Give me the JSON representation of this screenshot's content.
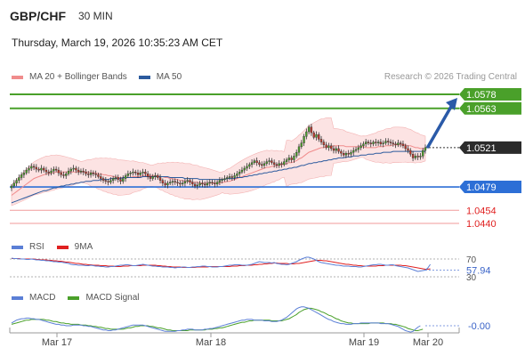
{
  "header": {
    "symbol": "GBP/CHF",
    "interval": "30 MIN",
    "datetime": "Thursday, March 19, 2026 10:35:23 AM CET",
    "research": "Research © 2026 Trading Central"
  },
  "legend_main": [
    {
      "label": "MA 20 + Bollinger Bands",
      "color": "#f08c8c"
    },
    {
      "label": "MA 50",
      "color": "#2c5b9e"
    }
  ],
  "legend_rsi": [
    {
      "label": "RSI",
      "color": "#5b7fd6"
    },
    {
      "label": "9MA",
      "color": "#e02020"
    }
  ],
  "legend_macd": [
    {
      "label": "MACD",
      "color": "#5b7fd6"
    },
    {
      "label": "MACD Signal",
      "color": "#4aa02a"
    }
  ],
  "chart_data": {
    "type": "candlestick",
    "x_ticks": [
      "Mar 17",
      "Mar 18",
      "Mar 19",
      "Mar 20"
    ],
    "ylim": [
      1.043,
      1.059
    ],
    "levels": [
      {
        "value": 1.0578,
        "label": "1.0578",
        "color": "#4aa02a",
        "kind": "resistance"
      },
      {
        "value": 1.0563,
        "label": "1.0563",
        "color": "#4aa02a",
        "kind": "resistance"
      },
      {
        "value": 1.0521,
        "label": "1.0521",
        "color": "#333333",
        "kind": "last"
      },
      {
        "value": 1.0479,
        "label": "1.0479",
        "color": "#2d6fd6",
        "kind": "pivot"
      },
      {
        "value": 1.0454,
        "label": "1.0454",
        "color": "#e02020",
        "kind": "support"
      },
      {
        "value": 1.044,
        "label": "1.0440",
        "color": "#e02020",
        "kind": "support"
      }
    ],
    "close": [
      1.048,
      1.0483,
      1.0486,
      1.0489,
      1.0492,
      1.0494,
      1.0497,
      1.0499,
      1.0501,
      1.05,
      1.0498,
      1.0497,
      1.0499,
      1.0497,
      1.0495,
      1.0494,
      1.0496,
      1.0498,
      1.0497,
      1.0494,
      1.0492,
      1.0491,
      1.0493,
      1.0496,
      1.0498,
      1.0499,
      1.0497,
      1.0495,
      1.0496,
      1.0495,
      1.0493,
      1.0492,
      1.0494,
      1.0493,
      1.0492,
      1.049,
      1.0488,
      1.0486,
      1.0485,
      1.0484,
      1.0486,
      1.0488,
      1.0489,
      1.0487,
      1.0485,
      1.0488,
      1.0491,
      1.0493,
      1.0494,
      1.0495,
      1.0494,
      1.0492,
      1.0494,
      1.0495,
      1.0493,
      1.049,
      1.0488,
      1.049,
      1.0491,
      1.0489,
      1.0486,
      1.0483,
      1.0481,
      1.0483,
      1.0484,
      1.0485,
      1.0484,
      1.0483,
      1.0482,
      1.0483,
      1.0485,
      1.0486,
      1.0484,
      1.0482,
      1.048,
      1.0481,
      1.0483,
      1.0482,
      1.0481,
      1.0483,
      1.0484,
      1.0483,
      1.0482,
      1.0484,
      1.0486,
      1.0487,
      1.0488,
      1.0489,
      1.049,
      1.0489,
      1.0491,
      1.0493,
      1.0495,
      1.0497,
      1.0499,
      1.0501,
      1.0503,
      1.0505,
      1.0507,
      1.0505,
      1.0503,
      1.0502,
      1.0504,
      1.0506,
      1.0507,
      1.0505,
      1.0503,
      1.0502,
      1.0504,
      1.0503,
      1.0506,
      1.0508,
      1.051,
      1.0508,
      1.0512,
      1.0516,
      1.0522,
      1.0526,
      1.0533,
      1.0538,
      1.0543,
      1.0537,
      1.0532,
      1.0535,
      1.053,
      1.0527,
      1.0524,
      1.0521,
      1.0523,
      1.052,
      1.0518,
      1.052,
      1.0517,
      1.0515,
      1.0513,
      1.0515,
      1.0514,
      1.0516,
      1.0518,
      1.0519,
      1.0521,
      1.0523,
      1.0525,
      1.0527,
      1.0526,
      1.0525,
      1.0527,
      1.0526,
      1.0527,
      1.0525,
      1.0526,
      1.0528,
      1.0527,
      1.0526,
      1.0525,
      1.0524,
      1.0526,
      1.0525,
      1.0523,
      1.052,
      1.0518,
      1.0514,
      1.051,
      1.0512,
      1.0511,
      1.0512,
      1.0518,
      1.0521
    ],
    "ma20": [
      1.047,
      1.0472,
      1.0474,
      1.0476,
      1.0478,
      1.048,
      1.0482,
      1.0484,
      1.0486,
      1.0488,
      1.0489,
      1.049,
      1.0491,
      1.0492,
      1.0493,
      1.0493,
      1.0494,
      1.0494,
      1.0495,
      1.0495,
      1.0495,
      1.0495,
      1.0495,
      1.0495,
      1.0495,
      1.0495,
      1.0495,
      1.0495,
      1.0495,
      1.0495,
      1.0495,
      1.0495,
      1.0494,
      1.0494,
      1.0494,
      1.0493,
      1.0493,
      1.0492,
      1.0492,
      1.0491,
      1.0491,
      1.049,
      1.049,
      1.0489,
      1.0489,
      1.0489,
      1.0489,
      1.0489,
      1.0489,
      1.049,
      1.049,
      1.049,
      1.049,
      1.0491,
      1.0491,
      1.0491,
      1.0491,
      1.0491,
      1.0491,
      1.0491,
      1.049,
      1.049,
      1.0489,
      1.0489,
      1.0488,
      1.0488,
      1.0487,
      1.0487,
      1.0486,
      1.0486,
      1.0485,
      1.0485,
      1.0485,
      1.0484,
      1.0484,
      1.0484,
      1.0483,
      1.0483,
      1.0483,
      1.0483,
      1.0483,
      1.0483,
      1.0483,
      1.0483,
      1.0483,
      1.0484,
      1.0484,
      1.0485,
      1.0485,
      1.0486,
      1.0487,
      1.0488,
      1.0489,
      1.049,
      1.0491,
      1.0492,
      1.0493,
      1.0494,
      1.0495,
      1.0496,
      1.0497,
      1.0498,
      1.0499,
      1.05,
      1.05,
      1.0501,
      1.0501,
      1.0502,
      1.0502,
      1.0503,
      1.0503,
      1.0504,
      1.0505,
      1.0505,
      1.0506,
      1.0507,
      1.0509,
      1.051,
      1.0512,
      1.0514,
      1.0516,
      1.0517,
      1.0518,
      1.0519,
      1.052,
      1.0521,
      1.0521,
      1.0522,
      1.0522,
      1.0522,
      1.0523,
      1.0523,
      1.0523,
      1.0523,
      1.0523,
      1.0522,
      1.0522,
      1.0522,
      1.0522,
      1.0522,
      1.0522,
      1.0522,
      1.0522,
      1.0521,
      1.0521,
      1.0521,
      1.0521,
      1.0521,
      1.0522,
      1.0522,
      1.0522,
      1.0523,
      1.0523,
      1.0523,
      1.0524,
      1.0524,
      1.0524,
      1.0524,
      1.0524,
      1.0524,
      1.0523,
      1.0523,
      1.0522,
      1.0521,
      1.0521,
      1.052,
      1.052,
      1.052
    ],
    "ma50": [
      1.0462,
      1.0463,
      1.0464,
      1.0465,
      1.0466,
      1.0467,
      1.0468,
      1.0469,
      1.047,
      1.0471,
      1.0472,
      1.0473,
      1.0474,
      1.0475,
      1.0475,
      1.0476,
      1.0477,
      1.0478,
      1.0478,
      1.0479,
      1.048,
      1.048,
      1.0481,
      1.0481,
      1.0482,
      1.0482,
      1.0483,
      1.0483,
      1.0484,
      1.0484,
      1.0485,
      1.0485,
      1.0485,
      1.0486,
      1.0486,
      1.0486,
      1.0487,
      1.0487,
      1.0487,
      1.0487,
      1.0488,
      1.0488,
      1.0488,
      1.0488,
      1.0488,
      1.0489,
      1.0489,
      1.0489,
      1.0489,
      1.0489,
      1.0489,
      1.0489,
      1.0489,
      1.049,
      1.049,
      1.049,
      1.049,
      1.049,
      1.049,
      1.049,
      1.049,
      1.049,
      1.049,
      1.049,
      1.0489,
      1.0489,
      1.0489,
      1.0489,
      1.0489,
      1.0489,
      1.0488,
      1.0488,
      1.0488,
      1.0488,
      1.0488,
      1.0488,
      1.0487,
      1.0487,
      1.0487,
      1.0487,
      1.0487,
      1.0487,
      1.0487,
      1.0487,
      1.0487,
      1.0487,
      1.0487,
      1.0488,
      1.0488,
      1.0488,
      1.0488,
      1.0489,
      1.0489,
      1.0489,
      1.049,
      1.049,
      1.0491,
      1.0491,
      1.0492,
      1.0492,
      1.0493,
      1.0493,
      1.0494,
      1.0494,
      1.0495,
      1.0495,
      1.0496,
      1.0496,
      1.0497,
      1.0497,
      1.0498,
      1.0498,
      1.0499,
      1.0499,
      1.05,
      1.05,
      1.0501,
      1.0502,
      1.0502,
      1.0503,
      1.0504,
      1.0504,
      1.0505,
      1.0505,
      1.0506,
      1.0506,
      1.0507,
      1.0507,
      1.0508,
      1.0508,
      1.0509,
      1.0509,
      1.051,
      1.051,
      1.051,
      1.0511,
      1.0511,
      1.0511,
      1.0512,
      1.0512,
      1.0512,
      1.0513,
      1.0513,
      1.0513,
      1.0514,
      1.0514,
      1.0514,
      1.0515,
      1.0515,
      1.0515,
      1.0516,
      1.0516,
      1.0516,
      1.0516,
      1.0517,
      1.0517,
      1.0517,
      1.0517,
      1.0517,
      1.0517,
      1.0517,
      1.0517,
      1.0517,
      1.0517,
      1.0517,
      1.0517,
      1.0517,
      1.0517
    ],
    "rsi": {
      "ylim": [
        20,
        80
      ],
      "tick_labels": [
        "70",
        "30"
      ],
      "last_label": "57.94",
      "values": [
        72,
        71,
        71,
        70,
        70,
        70,
        69,
        69,
        70,
        69,
        68,
        68,
        67,
        67,
        66,
        66,
        65,
        64,
        64,
        63,
        63,
        62,
        61,
        60,
        58,
        57,
        57,
        56,
        56,
        56,
        55,
        55,
        56,
        55,
        54,
        54,
        53,
        53,
        52,
        52,
        53,
        53,
        54,
        55,
        56,
        56,
        57,
        57,
        56,
        55,
        55,
        56,
        57,
        58,
        57,
        56,
        55,
        54,
        54,
        53,
        53,
        52,
        52,
        52,
        51,
        51,
        50,
        51,
        51,
        52,
        52,
        51,
        51,
        52,
        52,
        53,
        53,
        54,
        54,
        53,
        53,
        52,
        52,
        52,
        53,
        53,
        54,
        55,
        56,
        56,
        57,
        57,
        57,
        56,
        56,
        56,
        57,
        58,
        60,
        62,
        64,
        63,
        62,
        62,
        62,
        61,
        62,
        60,
        59,
        58,
        58,
        57,
        58,
        60,
        62,
        64,
        67,
        70,
        72,
        74,
        74,
        72,
        70,
        67,
        64,
        62,
        61,
        60,
        59,
        58,
        57,
        56,
        56,
        55,
        54,
        54,
        54,
        53,
        53,
        53,
        52,
        52,
        53,
        54,
        55,
        56,
        57,
        57,
        58,
        58,
        57,
        56,
        56,
        57,
        57,
        55,
        54,
        53,
        52,
        51,
        50,
        48,
        46,
        44,
        42,
        43,
        44,
        45,
        50,
        57.94
      ],
      "ma9": [
        71,
        71,
        71,
        71,
        70,
        70,
        70,
        70,
        70,
        70,
        69,
        69,
        68,
        68,
        68,
        67,
        67,
        66,
        66,
        65,
        65,
        64,
        63,
        63,
        62,
        61,
        60,
        60,
        59,
        58,
        58,
        57,
        57,
        56,
        56,
        56,
        55,
        55,
        55,
        54,
        54,
        54,
        53,
        53,
        53,
        54,
        54,
        54,
        55,
        55,
        55,
        55,
        55,
        56,
        56,
        56,
        56,
        56,
        56,
        55,
        55,
        54,
        54,
        53,
        53,
        52,
        52,
        52,
        52,
        51,
        51,
        51,
        51,
        51,
        51,
        52,
        52,
        52,
        52,
        52,
        53,
        53,
        53,
        53,
        53,
        53,
        53,
        53,
        53,
        54,
        54,
        54,
        55,
        55,
        55,
        56,
        56,
        56,
        57,
        57,
        58,
        58,
        59,
        59,
        60,
        60,
        61,
        61,
        60,
        60,
        60,
        60,
        59,
        59,
        59,
        60,
        60,
        61,
        62,
        63,
        64,
        65,
        66,
        67,
        67,
        67,
        66,
        66,
        65,
        64,
        63,
        62,
        61,
        60,
        59,
        58,
        58,
        57,
        56,
        56,
        55,
        55,
        54,
        54,
        54,
        54,
        54,
        54,
        55,
        55,
        55,
        56,
        56,
        56,
        56,
        56,
        56,
        56,
        55,
        55,
        54,
        53,
        52,
        51,
        50,
        49,
        48,
        47,
        47,
        48
      ]
    },
    "macd": {
      "last_label": "-0.00",
      "macd": [
        0.4,
        0.6,
        0.8,
        0.9,
        1.0,
        1.0,
        1.1,
        1.1,
        1.0,
        1.0,
        0.9,
        0.9,
        0.8,
        0.7,
        0.6,
        0.5,
        0.4,
        0.3,
        0.2,
        0.2,
        0.1,
        0.1,
        0.0,
        0.0,
        0.0,
        0.1,
        0.1,
        0.1,
        0.1,
        0.0,
        0.0,
        -0.1,
        -0.1,
        -0.2,
        -0.3,
        -0.4,
        -0.5,
        -0.6,
        -0.6,
        -0.7,
        -0.7,
        -0.6,
        -0.6,
        -0.5,
        -0.4,
        -0.3,
        -0.2,
        -0.1,
        0.0,
        0.1,
        0.1,
        0.1,
        0.1,
        0.1,
        0.0,
        -0.1,
        -0.2,
        -0.3,
        -0.4,
        -0.5,
        -0.6,
        -0.7,
        -0.8,
        -0.8,
        -0.8,
        -0.8,
        -0.8,
        -0.7,
        -0.7,
        -0.6,
        -0.6,
        -0.5,
        -0.5,
        -0.5,
        -0.6,
        -0.6,
        -0.6,
        -0.6,
        -0.5,
        -0.5,
        -0.4,
        -0.4,
        -0.3,
        -0.2,
        -0.1,
        0.0,
        0.1,
        0.2,
        0.3,
        0.4,
        0.5,
        0.6,
        0.7,
        0.8,
        0.8,
        0.9,
        0.9,
        0.9,
        0.8,
        0.8,
        0.8,
        0.8,
        0.7,
        0.7,
        0.7,
        0.6,
        0.6,
        0.6,
        0.7,
        0.8,
        1.0,
        1.2,
        1.5,
        1.8,
        2.1,
        2.4,
        2.6,
        2.7,
        2.7,
        2.6,
        2.5,
        2.3,
        2.1,
        1.9,
        1.7,
        1.5,
        1.3,
        1.1,
        0.9,
        0.8,
        0.6,
        0.5,
        0.4,
        0.3,
        0.3,
        0.2,
        0.2,
        0.2,
        0.3,
        0.3,
        0.3,
        0.4,
        0.4,
        0.4,
        0.4,
        0.4,
        0.4,
        0.4,
        0.4,
        0.3,
        0.3,
        0.3,
        0.3,
        0.2,
        0.1,
        0.0,
        -0.1,
        -0.3,
        -0.5,
        -0.7,
        -0.8,
        -0.9,
        -0.8,
        -0.5,
        -0.2,
        -0.0
      ],
      "signal": [
        0.2,
        0.3,
        0.4,
        0.5,
        0.6,
        0.7,
        0.8,
        0.8,
        0.9,
        0.9,
        0.9,
        0.9,
        0.9,
        0.9,
        0.8,
        0.8,
        0.7,
        0.6,
        0.6,
        0.5,
        0.4,
        0.4,
        0.3,
        0.3,
        0.2,
        0.2,
        0.2,
        0.2,
        0.1,
        0.1,
        0.1,
        0.0,
        0.0,
        -0.1,
        -0.1,
        -0.2,
        -0.2,
        -0.3,
        -0.4,
        -0.4,
        -0.5,
        -0.5,
        -0.5,
        -0.5,
        -0.5,
        -0.5,
        -0.4,
        -0.3,
        -0.3,
        -0.2,
        -0.1,
        -0.1,
        0.0,
        0.0,
        0.0,
        0.0,
        -0.1,
        -0.1,
        -0.2,
        -0.3,
        -0.3,
        -0.4,
        -0.5,
        -0.6,
        -0.6,
        -0.7,
        -0.7,
        -0.7,
        -0.7,
        -0.7,
        -0.7,
        -0.7,
        -0.6,
        -0.6,
        -0.6,
        -0.6,
        -0.6,
        -0.6,
        -0.6,
        -0.5,
        -0.5,
        -0.5,
        -0.4,
        -0.4,
        -0.3,
        -0.3,
        -0.2,
        -0.1,
        0.0,
        0.1,
        0.2,
        0.3,
        0.4,
        0.5,
        0.5,
        0.6,
        0.7,
        0.7,
        0.8,
        0.8,
        0.8,
        0.8,
        0.8,
        0.8,
        0.8,
        0.7,
        0.7,
        0.7,
        0.7,
        0.7,
        0.8,
        0.9,
        1.0,
        1.2,
        1.4,
        1.6,
        1.9,
        2.1,
        2.3,
        2.4,
        2.5,
        2.5,
        2.4,
        2.3,
        2.2,
        2.0,
        1.9,
        1.7,
        1.5,
        1.4,
        1.2,
        1.0,
        0.9,
        0.7,
        0.6,
        0.5,
        0.4,
        0.4,
        0.3,
        0.3,
        0.3,
        0.3,
        0.3,
        0.3,
        0.3,
        0.4,
        0.4,
        0.4,
        0.4,
        0.4,
        0.4,
        0.3,
        0.3,
        0.3,
        0.2,
        0.2,
        0.1,
        0.0,
        -0.1,
        -0.2,
        -0.4,
        -0.5,
        -0.6,
        -0.7,
        -0.7,
        -0.6,
        -0.5
      ]
    }
  }
}
